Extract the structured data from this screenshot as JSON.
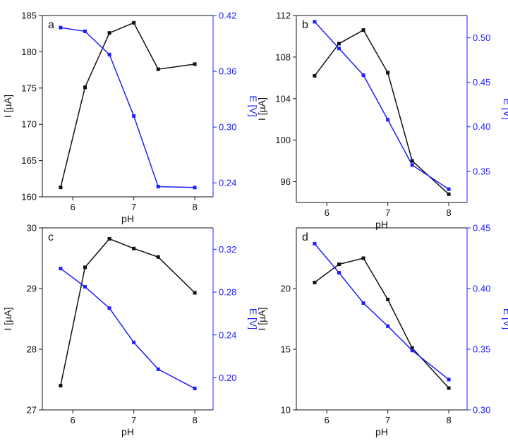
{
  "colors": {
    "left_series": "#111111",
    "right_series": "#1f1fff",
    "axis": "#111111"
  },
  "chart_data": [
    {
      "type": "line",
      "panel_label": "a",
      "xlabel": "pH",
      "ylabel": "I [µA]",
      "y2label": "E [V]",
      "xlim": [
        5.5,
        8.3
      ],
      "ylim": [
        160,
        185
      ],
      "y2lim": [
        0.225,
        0.42
      ],
      "x_ticks": [
        6,
        7,
        8
      ],
      "y_ticks": [
        160,
        165,
        170,
        175,
        180,
        185
      ],
      "y2_ticks": [
        0.24,
        0.3,
        0.36,
        0.42
      ],
      "y2_decimals": 2,
      "series": [
        {
          "axis": "left",
          "x": [
            5.8,
            6.2,
            6.6,
            7.0,
            7.4,
            8.0
          ],
          "values": [
            161.3,
            175.1,
            182.6,
            184.0,
            177.6,
            178.3
          ]
        },
        {
          "axis": "right",
          "x": [
            5.8,
            6.2,
            6.6,
            7.0,
            7.4,
            8.0
          ],
          "values": [
            0.407,
            0.403,
            0.378,
            0.312,
            0.236,
            0.235
          ]
        }
      ]
    },
    {
      "type": "line",
      "panel_label": "b",
      "xlabel": "pH",
      "ylabel": "I [µA]",
      "y2label": "E [V]",
      "xlim": [
        5.5,
        8.3
      ],
      "ylim": [
        94,
        112
      ],
      "y2lim": [
        0.315,
        0.525
      ],
      "x_ticks": [
        6,
        7,
        8
      ],
      "y_ticks": [
        96,
        100,
        104,
        108,
        112
      ],
      "y2_ticks": [
        0.35,
        0.4,
        0.45,
        0.5
      ],
      "y2_decimals": 2,
      "series": [
        {
          "axis": "left",
          "x": [
            5.8,
            6.2,
            6.6,
            7.0,
            7.4,
            8.0
          ],
          "values": [
            106.2,
            109.3,
            110.6,
            106.5,
            98.0,
            94.8
          ]
        },
        {
          "axis": "right",
          "x": [
            5.8,
            6.2,
            6.6,
            7.0,
            7.4,
            8.0
          ],
          "values": [
            0.518,
            0.488,
            0.458,
            0.408,
            0.357,
            0.33
          ]
        }
      ]
    },
    {
      "type": "line",
      "panel_label": "c",
      "xlabel": "pH",
      "ylabel": "I [µA]",
      "y2label": "E [V]",
      "xlim": [
        5.5,
        8.3
      ],
      "ylim": [
        27,
        30
      ],
      "y2lim": [
        0.17,
        0.34
      ],
      "x_ticks": [
        6,
        7,
        8
      ],
      "y_ticks": [
        27,
        28,
        29,
        30
      ],
      "y2_ticks": [
        0.2,
        0.24,
        0.28,
        0.32
      ],
      "y2_decimals": 2,
      "series": [
        {
          "axis": "left",
          "x": [
            5.8,
            6.2,
            6.6,
            7.0,
            7.4,
            8.0
          ],
          "values": [
            27.4,
            29.35,
            29.82,
            29.66,
            29.52,
            28.93
          ]
        },
        {
          "axis": "right",
          "x": [
            5.8,
            6.2,
            6.6,
            7.0,
            7.4,
            8.0
          ],
          "values": [
            0.302,
            0.285,
            0.265,
            0.233,
            0.208,
            0.19
          ]
        }
      ]
    },
    {
      "type": "line",
      "panel_label": "d",
      "xlabel": "pH",
      "ylabel": "I [µA]",
      "y2label": "E [V]",
      "xlim": [
        5.5,
        8.3
      ],
      "ylim": [
        10,
        25
      ],
      "y2lim": [
        0.3,
        0.45
      ],
      "x_ticks": [
        6,
        7,
        8
      ],
      "y_ticks": [
        10,
        15,
        20
      ],
      "y2_ticks": [
        0.3,
        0.35,
        0.4,
        0.45
      ],
      "y2_decimals": 2,
      "series": [
        {
          "axis": "left",
          "x": [
            5.8,
            6.2,
            6.6,
            7.0,
            7.4,
            8.0
          ],
          "values": [
            20.5,
            22.0,
            22.5,
            19.1,
            15.1,
            11.8
          ]
        },
        {
          "axis": "right",
          "x": [
            5.8,
            6.2,
            6.6,
            7.0,
            7.4,
            8.0
          ],
          "values": [
            0.437,
            0.413,
            0.388,
            0.369,
            0.349,
            0.325
          ]
        }
      ]
    }
  ]
}
